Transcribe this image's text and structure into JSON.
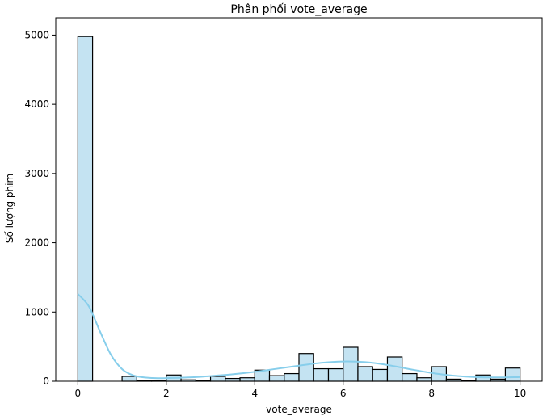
{
  "chart_data": {
    "type": "bar",
    "title": "Phân phối vote_average",
    "xlabel": "vote_average",
    "ylabel": "Số lượng phim",
    "xlim": [
      -0.5,
      10.5
    ],
    "ylim": [
      0,
      5250
    ],
    "x_ticks": [
      0,
      2,
      4,
      6,
      8,
      10
    ],
    "y_ticks": [
      0,
      1000,
      2000,
      3000,
      4000,
      5000
    ],
    "grid": false,
    "bin_edges": [
      0.0,
      0.333,
      0.667,
      1.0,
      1.333,
      1.667,
      2.0,
      2.333,
      2.667,
      3.0,
      3.333,
      3.667,
      4.0,
      4.333,
      4.667,
      5.0,
      5.333,
      5.667,
      6.0,
      6.333,
      6.667,
      7.0,
      7.333,
      7.667,
      8.0,
      8.333,
      8.667,
      9.0,
      9.333,
      9.667,
      10.0
    ],
    "counts": [
      4980,
      0,
      0,
      70,
      10,
      10,
      90,
      20,
      10,
      70,
      40,
      50,
      160,
      80,
      110,
      400,
      180,
      180,
      490,
      210,
      170,
      350,
      110,
      50,
      210,
      30,
      10,
      90,
      30,
      190
    ],
    "kde": {
      "x": [
        0,
        0.25,
        0.5,
        0.75,
        1.0,
        1.25,
        1.5,
        1.75,
        2.0,
        2.5,
        3.0,
        3.5,
        4.0,
        4.5,
        5.0,
        5.5,
        6.0,
        6.5,
        7.0,
        7.5,
        8.0,
        8.5,
        9.0,
        9.5,
        10.0
      ],
      "y": [
        1260,
        1080,
        720,
        380,
        175,
        85,
        55,
        45,
        45,
        55,
        75,
        100,
        135,
        180,
        225,
        265,
        285,
        275,
        235,
        175,
        120,
        80,
        60,
        55,
        60
      ]
    },
    "colors": {
      "bar_fill": "#c4e3f2",
      "bar_edge": "#000000",
      "kde_line": "#87ceeb"
    }
  }
}
